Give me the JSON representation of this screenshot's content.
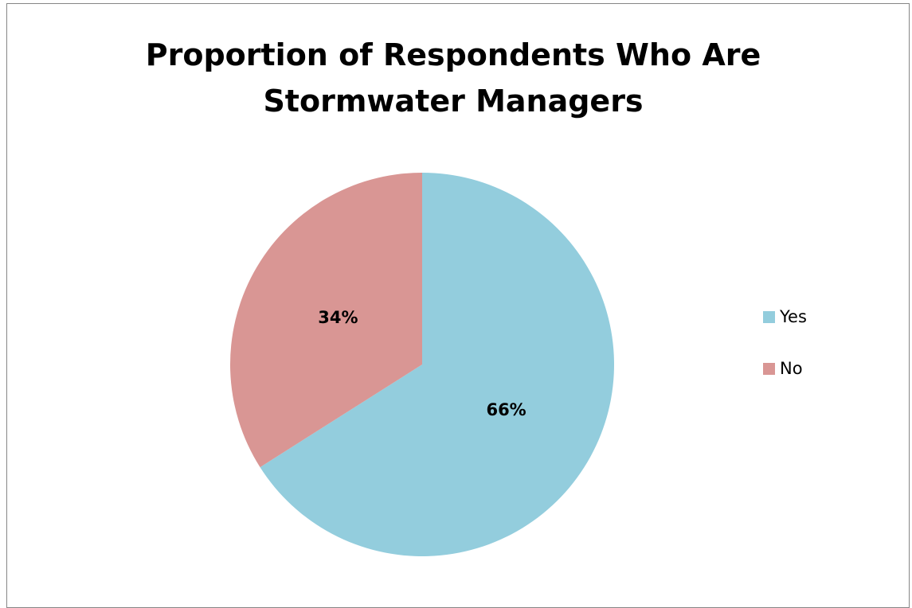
{
  "chart_data": {
    "type": "pie",
    "title": "Proportion of Respondents Who Are Stormwater Managers",
    "title_lines": [
      "Proportion of Respondents Who Are",
      "Stormwater Managers"
    ],
    "slices": [
      {
        "name": "Yes",
        "value": 66,
        "label": "66%",
        "color": "#93CDDD"
      },
      {
        "name": "No",
        "value": 34,
        "label": "34%",
        "color": "#D99694"
      }
    ],
    "legend_position": "right",
    "start_angle": "12 o'clock",
    "direction": "clockwise"
  }
}
